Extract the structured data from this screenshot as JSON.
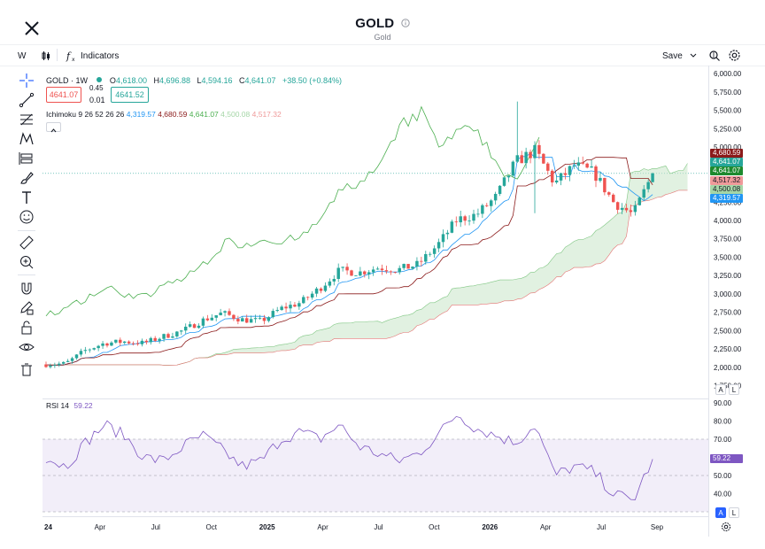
{
  "header": {
    "title": "GOLD",
    "subtitle": "Gold",
    "close_icon": "close-icon",
    "info_icon": "info-icon"
  },
  "toolbar": {
    "interval": "W",
    "indicators_label": "Indicators",
    "save_label": "Save"
  },
  "legend": {
    "symbol": "GOLD · 1W",
    "ohlc": {
      "o_label": "O",
      "o": "4,618.00",
      "h_label": "H",
      "h": "4,696.88",
      "l_label": "L",
      "l": "4,594.16",
      "c_label": "C",
      "c": "4,641.07",
      "change": "+38.50 (+0.84%)"
    },
    "sell_price": "4641.07",
    "spread_top": "0.45",
    "spread_bottom": "0.01",
    "buy_price": "4641.52",
    "ichimoku_label": "Ichimoku 9 26 52 26 26",
    "ichimoku_values": [
      "4,319.57",
      "4,680.59",
      "4,641.07",
      "4,500.08",
      "4,517.32"
    ],
    "rsi_label": "RSI 14",
    "rsi_value": "59.22"
  },
  "price_axis": {
    "ticks": [
      "6,000.00",
      "5,750.00",
      "5,500.00",
      "5,250.00",
      "5,000.00",
      "4,750.00",
      "4,500.00",
      "4,250.00",
      "4,000.00",
      "3,750.00",
      "3,500.00",
      "3,250.00",
      "3,000.00",
      "2,750.00",
      "2,500.00",
      "2,250.00",
      "2,000.00",
      "1,750.00"
    ],
    "tags": [
      {
        "value": "4,680.59",
        "color": "#8b1a1a"
      },
      {
        "value": "4,641.07",
        "color": "#26a69a"
      },
      {
        "value": "4,641.07",
        "color": "#1e8a2e"
      },
      {
        "value": "4,517.32",
        "color": "#ef9a9a"
      },
      {
        "value": "4,500.08",
        "color": "#a5d6a7"
      },
      {
        "value": "4,319.57",
        "color": "#2196f3"
      }
    ],
    "auto_label": "A",
    "log_label": "L"
  },
  "rsi_axis": {
    "ticks": [
      "90.00",
      "80.00",
      "70.00",
      "60.00",
      "50.00",
      "40.00"
    ],
    "tag": "59.22",
    "auto_label": "A",
    "log_label": "L"
  },
  "time_axis": {
    "labels": [
      "24",
      "Apr",
      "Jul",
      "Oct",
      "2025",
      "Apr",
      "Jul",
      "Oct",
      "2026",
      "Apr",
      "Jul",
      "Sep"
    ]
  },
  "colors": {
    "up": "#26a69a",
    "down": "#ef5350",
    "conversion": "#2196f3",
    "base": "#8b1a1a",
    "lagging": "#4caf50",
    "cloud": "#c8e6c9",
    "rsi": "#7e57c2",
    "rsi_band": "#ede7f6"
  },
  "chart_data": {
    "type": "line",
    "title": "GOLD · 1W",
    "ylim": [
      1600,
      6050
    ],
    "close_series": {
      "name": "GOLD",
      "x": [
        "2024-01",
        "2024-02",
        "2024-03",
        "2024-04",
        "2024-05",
        "2024-06",
        "2024-07",
        "2024-08",
        "2024-09",
        "2024-10",
        "2024-11",
        "2024-12",
        "2025-01",
        "2025-02",
        "2025-03",
        "2025-04",
        "2025-05",
        "2025-06",
        "2025-07",
        "2025-08",
        "2025-09",
        "2025-10",
        "2025-11",
        "2025-12",
        "2026-01",
        "2026-02",
        "2026-03",
        "2026-04",
        "2026-05",
        "2026-06",
        "2026-07",
        "2026-08"
      ],
      "values": [
        2040,
        2050,
        2230,
        2330,
        2350,
        2330,
        2420,
        2500,
        2640,
        2740,
        2650,
        2630,
        2800,
        2880,
        3080,
        3320,
        3290,
        3360,
        3330,
        3400,
        3660,
        4010,
        4080,
        4320,
        4800,
        4950,
        4500,
        4750,
        4650,
        4250,
        4080,
        4641
      ]
    },
    "rsi": {
      "ylim": [
        30,
        90
      ],
      "values": [
        60,
        55,
        68,
        78,
        72,
        60,
        58,
        66,
        72,
        64,
        55,
        58,
        70,
        74,
        70,
        78,
        66,
        62,
        58,
        62,
        72,
        84,
        76,
        72,
        68,
        78,
        50,
        55,
        52,
        40,
        36,
        59
      ]
    }
  }
}
